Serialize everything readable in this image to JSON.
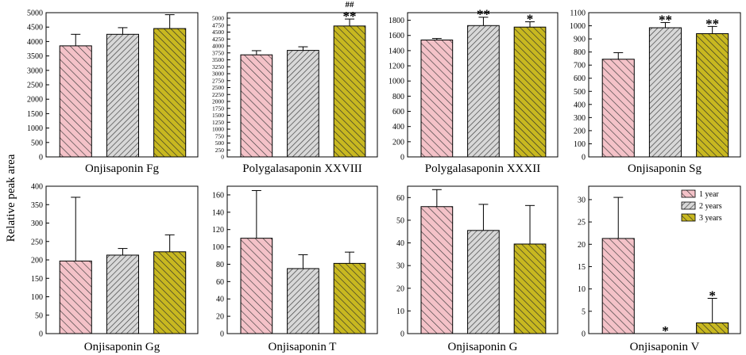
{
  "figure": {
    "ylabel": "Relative peak area",
    "legend": [
      "1 year",
      "2 years",
      "3 years"
    ],
    "legend_location": "top-right of last panel",
    "colors": [
      "#f4c2c8",
      "#d8d8d8",
      "#c8b820"
    ],
    "hatch_color": "#3a3a3a"
  },
  "chart_data": [
    {
      "type": "bar",
      "title": "Onjisaponin Fg",
      "categories": [
        "1 year",
        "2 years",
        "3 years"
      ],
      "values": [
        3850,
        4250,
        4450
      ],
      "errors": [
        400,
        230,
        480
      ],
      "ylim": [
        0,
        5000
      ],
      "ticks": [
        "0",
        "500",
        "1000",
        "1500",
        "2000",
        "2500",
        "3000",
        "3500",
        "4000",
        "4500",
        "5000"
      ],
      "markers": [
        "",
        "",
        ""
      ]
    },
    {
      "type": "bar",
      "title": "Polygalasaponin XXVIII",
      "categories": [
        "1 year",
        "2 years",
        "3 years"
      ],
      "values": [
        3680,
        3840,
        4720
      ],
      "errors": [
        150,
        130,
        250
      ],
      "ylim": [
        0,
        5200
      ],
      "ticks": [
        "0",
        "250",
        "500",
        "750",
        "1000",
        "1250",
        "1500",
        "1750",
        "2000",
        "2250",
        "2500",
        "2750",
        "3000",
        "3250",
        "3500",
        "3750",
        "4000",
        "4250",
        "4500",
        "4750",
        "5000"
      ],
      "markers": [
        "",
        "",
        "##\n**"
      ]
    },
    {
      "type": "bar",
      "title": "Polygalasaponin XXXII",
      "categories": [
        "1 year",
        "2 years",
        "3 years"
      ],
      "values": [
        1540,
        1730,
        1710
      ],
      "errors": [
        20,
        110,
        70
      ],
      "ylim": [
        0,
        1900
      ],
      "ticks": [
        "0",
        "200",
        "400",
        "600",
        "800",
        "1000",
        "1200",
        "1400",
        "1600",
        "1800"
      ],
      "markers": [
        "",
        "**",
        "*"
      ]
    },
    {
      "type": "bar",
      "title": "Onjisaponin Sg",
      "categories": [
        "1 year",
        "2 years",
        "3 years"
      ],
      "values": [
        745,
        985,
        940
      ],
      "errors": [
        50,
        40,
        55
      ],
      "ylim": [
        0,
        1100
      ],
      "ticks": [
        "0",
        "100",
        "200",
        "300",
        "400",
        "500",
        "600",
        "700",
        "800",
        "900",
        "1000",
        "1100"
      ],
      "markers": [
        "",
        "**",
        "**"
      ]
    },
    {
      "type": "bar",
      "title": "Onjisaponin Gg",
      "categories": [
        "1 year",
        "2 years",
        "3 years"
      ],
      "values": [
        197,
        213,
        222
      ],
      "errors": [
        173,
        18,
        46
      ],
      "ylim": [
        0,
        400
      ],
      "ticks": [
        "0",
        "50",
        "100",
        "150",
        "200",
        "250",
        "300",
        "350",
        "400"
      ],
      "markers": [
        "",
        "",
        ""
      ]
    },
    {
      "type": "bar",
      "title": "Onjisaponin T",
      "categories": [
        "1 year",
        "2 years",
        "3 years"
      ],
      "values": [
        110,
        75,
        81
      ],
      "errors": [
        55,
        16,
        13
      ],
      "ylim": [
        0,
        170
      ],
      "ticks": [
        "0",
        "20",
        "40",
        "60",
        "80",
        "100",
        "120",
        "140",
        "160"
      ],
      "markers": [
        "",
        "",
        ""
      ]
    },
    {
      "type": "bar",
      "title": "Onjisaponin G",
      "categories": [
        "1 year",
        "2 years",
        "3 years"
      ],
      "values": [
        56,
        45.5,
        39.5
      ],
      "errors": [
        7.5,
        11.5,
        17
      ],
      "ylim": [
        0,
        65
      ],
      "ticks": [
        "0",
        "10",
        "20",
        "30",
        "40",
        "50",
        "60"
      ],
      "markers": [
        "",
        "",
        ""
      ]
    },
    {
      "type": "bar",
      "title": "Onjisaponin V",
      "categories": [
        "1 year",
        "2 years",
        "3 years"
      ],
      "values": [
        21.3,
        0,
        2.4
      ],
      "errors": [
        9.2,
        0,
        5.5
      ],
      "ylim": [
        0,
        33
      ],
      "ticks": [
        "0",
        "5",
        "10",
        "15",
        "20",
        "25",
        "30"
      ],
      "markers": [
        "",
        "*",
        "*"
      ]
    }
  ]
}
